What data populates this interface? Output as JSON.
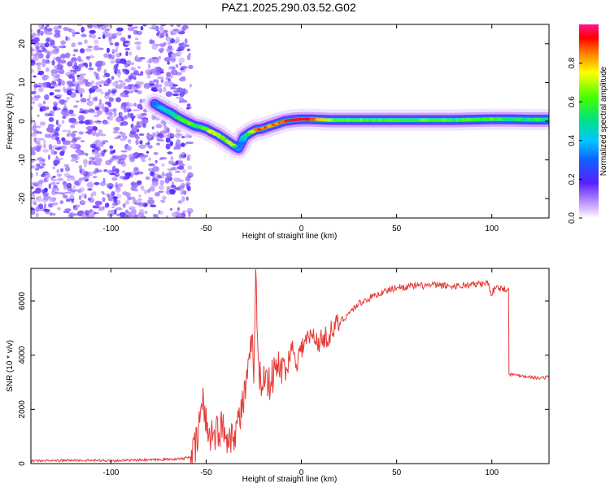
{
  "title": "PAZ1.2025.290.03.52.G02",
  "colors": {
    "snr_line": "#e53935",
    "track_core": "#e81e1e",
    "noise": "#7b2fe0"
  },
  "chart_data": [
    {
      "type": "heatmap",
      "name": "spectrogram",
      "xlabel": "Height of straight line (km)",
      "ylabel": "Frequency (Hz)",
      "xlim": [
        -142,
        130
      ],
      "ylim": [
        -25,
        25
      ],
      "xticks": [
        -100,
        -50,
        0,
        50,
        100
      ],
      "yticks": [
        -20,
        -10,
        0,
        10,
        20
      ],
      "colorbar": {
        "label": "Normalized spectral amplitude",
        "range": [
          0,
          1
        ],
        "ticks": [
          "0.0",
          "0.2",
          "0.4",
          "0.6",
          "0.8"
        ],
        "tick_values": [
          0,
          0.2,
          0.4,
          0.6,
          0.8
        ]
      },
      "track": {
        "x": [
          -77,
          -72,
          -68,
          -65,
          -62,
          -59,
          -56,
          -53,
          -50,
          -47,
          -44,
          -41,
          -38,
          -35,
          -33,
          -31,
          -30,
          -27,
          -24,
          -21,
          -18,
          -15,
          -12,
          -9,
          -6,
          -3,
          0,
          5,
          10,
          15,
          20,
          30,
          40,
          50,
          60,
          70,
          80,
          90,
          100,
          110,
          120,
          130
        ],
        "y": [
          4.5,
          3.0,
          2.0,
          1.0,
          0.2,
          -0.5,
          -1.2,
          -1.5,
          -2.0,
          -2.8,
          -3.5,
          -4.5,
          -5.5,
          -6.5,
          -7.0,
          -5.0,
          -4.0,
          -3.0,
          -2.2,
          -2.0,
          -1.5,
          -1.0,
          -0.5,
          0.0,
          0.2,
          0.4,
          0.5,
          0.5,
          0.4,
          0.3,
          0.3,
          0.3,
          0.3,
          0.3,
          0.3,
          0.3,
          0.3,
          0.4,
          0.5,
          0.5,
          0.4,
          0.4
        ],
        "amplitude": [
          0.3,
          0.45,
          0.5,
          0.55,
          0.6,
          0.65,
          0.6,
          0.55,
          0.6,
          0.75,
          0.7,
          0.6,
          0.75,
          0.65,
          0.35,
          0.35,
          0.45,
          0.6,
          0.8,
          0.9,
          0.85,
          0.85,
          0.85,
          0.9,
          0.95,
          0.95,
          0.95,
          0.9,
          0.8,
          0.7,
          0.65,
          0.6,
          0.6,
          0.6,
          0.6,
          0.6,
          0.6,
          0.62,
          0.6,
          0.55,
          0.55,
          0.55
        ]
      }
    },
    {
      "type": "line",
      "name": "snr",
      "xlabel": "Height of straight line (km)",
      "ylabel": "SNR (10 * v/v)",
      "xlim": [
        -142,
        130
      ],
      "ylim": [
        0,
        7200
      ],
      "xticks": [
        -100,
        -50,
        0,
        50,
        100
      ],
      "yticks": [
        0,
        2000,
        4000,
        6000
      ],
      "series": [
        {
          "name": "SNR",
          "x": [
            -142,
            -120,
            -100,
            -80,
            -62,
            -57,
            -55,
            -54,
            -52,
            -49,
            -46,
            -42,
            -38,
            -35,
            -32,
            -30,
            -28,
            -26,
            -25,
            -24,
            -23,
            -21,
            -19,
            -17,
            -14,
            -11,
            -8,
            -5,
            -2,
            0,
            5,
            10,
            15,
            20,
            25,
            30,
            40,
            50,
            60,
            70,
            80,
            90,
            98,
            100,
            102,
            105,
            108.5,
            109,
            115,
            120,
            125,
            130
          ],
          "y": [
            100,
            120,
            110,
            130,
            180,
            300,
            700,
            1300,
            2300,
            1200,
            1100,
            1300,
            1000,
            1200,
            1800,
            2500,
            3200,
            4500,
            3500,
            7200,
            4200,
            2600,
            3600,
            2900,
            3400,
            3600,
            3500,
            4300,
            3800,
            4300,
            4700,
            4500,
            4800,
            5200,
            5550,
            5900,
            6250,
            6500,
            6550,
            6580,
            6540,
            6600,
            6650,
            6250,
            6550,
            6450,
            6450,
            3300,
            3250,
            3200,
            3150,
            3200
          ]
        }
      ]
    }
  ]
}
